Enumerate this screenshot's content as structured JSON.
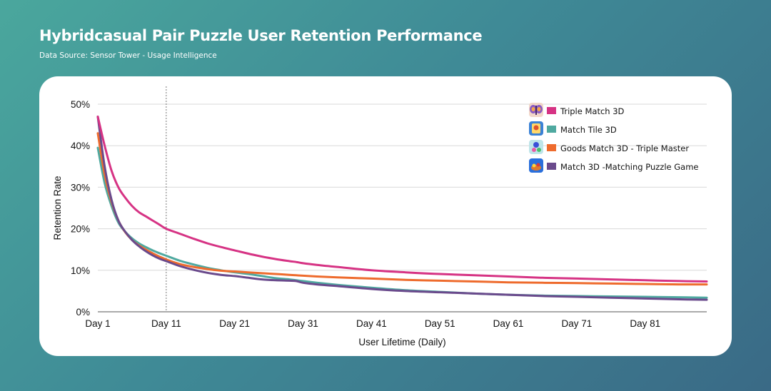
{
  "header": {
    "title": "Hybridcasual Pair Puzzle User Retention Performance",
    "subtitle": "Data Source: Sensor Tower - Usage Intelligence"
  },
  "chart_data": {
    "type": "line",
    "xlabel": "User Lifetime (Daily)",
    "ylabel": "Retention Rate",
    "x_tick_labels": [
      "Day 1",
      "Day 11",
      "Day 21",
      "Day 31",
      "Day 41",
      "Day 51",
      "Day 61",
      "Day 71",
      "Day 81"
    ],
    "y_tick_labels": [
      "0%",
      "10%",
      "20%",
      "30%",
      "40%",
      "50%"
    ],
    "ylim": [
      0,
      50
    ],
    "xlim": [
      1,
      90
    ],
    "grid": "horizontal",
    "legend_position": "top-right",
    "reference_line_day": 11,
    "x": [
      1,
      2,
      3,
      4,
      5,
      6,
      7,
      8,
      9,
      10,
      11,
      13,
      15,
      17,
      19,
      21,
      23,
      25,
      27,
      29,
      30,
      31,
      33,
      36,
      41,
      46,
      51,
      56,
      61,
      66,
      71,
      76,
      81,
      86,
      90
    ],
    "series": [
      {
        "name": "Triple Match 3D",
        "color": "#d63384",
        "icon": "butterfly-app-icon",
        "values": [
          47,
          40,
          34,
          30,
          27.5,
          25.5,
          24,
          23,
          22,
          21,
          20,
          18.8,
          17.6,
          16.5,
          15.6,
          14.8,
          14.0,
          13.3,
          12.7,
          12.2,
          12.0,
          11.7,
          11.3,
          10.8,
          10.0,
          9.5,
          9.1,
          8.8,
          8.5,
          8.2,
          8.0,
          7.8,
          7.6,
          7.4,
          7.3
        ]
      },
      {
        "name": "Match Tile 3D",
        "color": "#4fa9a0",
        "icon": "tile-app-icon",
        "values": [
          39.5,
          31,
          25.5,
          21.5,
          19.3,
          17.7,
          16.5,
          15.6,
          14.8,
          14.1,
          13.5,
          12.3,
          11.4,
          10.6,
          10.0,
          9.5,
          9.1,
          8.6,
          8.1,
          7.8,
          7.6,
          7.4,
          7.0,
          6.5,
          5.8,
          5.2,
          4.8,
          4.4,
          4.1,
          3.9,
          3.8,
          3.7,
          3.6,
          3.5,
          3.4
        ]
      },
      {
        "name": "Goods Match 3D - Triple Master",
        "color": "#ee6b2d",
        "icon": "goods-app-icon",
        "values": [
          43,
          33,
          26.5,
          22,
          19.2,
          17.3,
          16.0,
          15.0,
          14.1,
          13.3,
          12.6,
          11.5,
          10.8,
          10.3,
          9.9,
          9.7,
          9.5,
          9.3,
          9.1,
          8.9,
          8.8,
          8.7,
          8.5,
          8.3,
          8.0,
          7.7,
          7.5,
          7.3,
          7.1,
          7.0,
          6.9,
          6.8,
          6.7,
          6.6,
          6.6
        ]
      },
      {
        "name": "Match 3D -Matching Puzzle Game",
        "color": "#6a4a8c",
        "icon": "match3d-app-icon",
        "values": [
          47,
          35,
          27,
          22,
          19.3,
          17.3,
          15.8,
          14.6,
          13.6,
          12.8,
          12.2,
          11.0,
          10.1,
          9.4,
          8.9,
          8.6,
          8.2,
          7.8,
          7.6,
          7.5,
          7.4,
          7.0,
          6.6,
          6.2,
          5.5,
          5.0,
          4.7,
          4.4,
          4.1,
          3.8,
          3.6,
          3.4,
          3.2,
          3.0,
          2.9
        ]
      }
    ]
  }
}
